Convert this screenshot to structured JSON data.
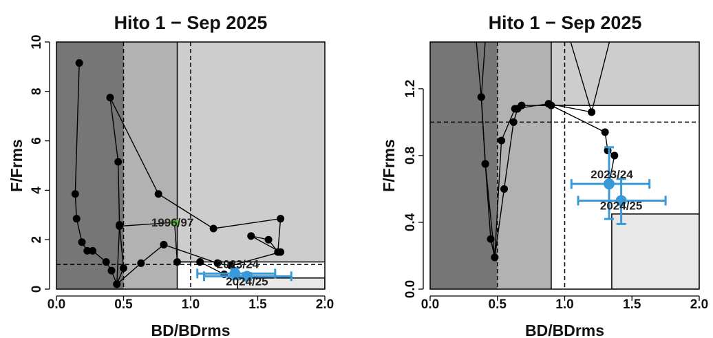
{
  "chart_data": [
    {
      "type": "scatter",
      "title": "Hito 1 − Sep 2025",
      "xlabel": "BD/BDrms",
      "ylabel": "F/Frms",
      "xlim": [
        0,
        2
      ],
      "ylim": [
        0,
        10
      ],
      "xticks": [
        "0.0",
        "0.5",
        "1.0",
        "1.5",
        "2.0"
      ],
      "yticks": [
        "0",
        "2",
        "4",
        "6",
        "8",
        "10"
      ],
      "x_tick_values": [
        0,
        0.5,
        1.0,
        1.5,
        2.0
      ],
      "y_tick_values": [
        0,
        2,
        4,
        6,
        8,
        10
      ],
      "grid": false,
      "ref_lines": {
        "x_dashed": [
          0.5,
          1.0
        ],
        "x_solid": [
          0.9
        ],
        "y_dashed": [
          1.0
        ]
      },
      "zones": {
        "dark_x_max": 0.5,
        "mid_x": [
          0.5,
          0.9
        ],
        "light_top": {
          "x": [
            0.9,
            2.0
          ],
          "y": [
            1.1,
            10
          ]
        },
        "white": {
          "x": [
            0.9,
            2.0
          ],
          "y": [
            0,
            1.1
          ]
        },
        "pale": {
          "x": [
            1.35,
            2.0
          ],
          "y": [
            0,
            0.45
          ]
        }
      },
      "colors": {
        "dark": "#767676",
        "mid": "#b2b2b2",
        "light": "#cdcdcd",
        "pale": "#e8e8e8",
        "series": "#000000",
        "current": "#3a9ad9",
        "highlight": "#5bbf3a"
      },
      "series": [
        {
          "points": [
            [
              0.17,
              9.15
            ],
            [
              0.14,
              3.85
            ],
            [
              0.15,
              2.85
            ],
            [
              0.19,
              1.9
            ],
            [
              0.23,
              1.55
            ],
            [
              0.27,
              1.55
            ],
            [
              0.37,
              1.1
            ],
            [
              0.41,
              0.75
            ],
            [
              0.45,
              0.2
            ],
            [
              0.5,
              0.85
            ],
            [
              0.47,
              2.6
            ],
            [
              0.46,
              5.15
            ],
            [
              0.4,
              7.75
            ],
            [
              0.76,
              3.85
            ],
            [
              1.17,
              2.45
            ],
            [
              1.67,
              2.85
            ],
            [
              1.65,
              1.5
            ],
            [
              1.58,
              2.0
            ],
            [
              1.45,
              2.15
            ],
            [
              1.67,
              1.5
            ],
            [
              1.3,
              0.95
            ],
            [
              1.2,
              1.05
            ],
            [
              0.8,
              1.8
            ],
            [
              0.63,
              1.05
            ],
            [
              0.45,
              0.2
            ],
            [
              0.47,
              2.55
            ],
            [
              0.88,
              2.7
            ],
            [
              0.9,
              1.1
            ],
            [
              1.07,
              1.1
            ],
            [
              1.25,
              0.6
            ]
          ]
        }
      ],
      "highlight_point": {
        "label": "1996/97",
        "x": 0.88,
        "y": 2.7
      },
      "current_points": [
        {
          "label": "2023/24",
          "x": 1.33,
          "y": 0.63,
          "xerr": [
            1.05,
            1.63
          ],
          "yerr": [
            0.4,
            0.85
          ]
        },
        {
          "label": "2024/25",
          "x": 1.42,
          "y": 0.52,
          "xerr": [
            1.1,
            1.75
          ],
          "yerr": [
            0.38,
            0.65
          ]
        }
      ]
    },
    {
      "type": "scatter",
      "title": "Hito 1 − Sep 2025",
      "xlabel": "BD/BDrms",
      "ylabel": "F/Frms",
      "xlim": [
        0,
        2
      ],
      "ylim": [
        0,
        1.48
      ],
      "xticks": [
        "0.0",
        "0.5",
        "1.0",
        "1.5",
        "2.0"
      ],
      "yticks": [
        "0.0",
        "0.4",
        "0.8",
        "1.2"
      ],
      "x_tick_values": [
        0,
        0.5,
        1.0,
        1.5,
        2.0
      ],
      "y_tick_values": [
        0,
        0.4,
        0.8,
        1.2
      ],
      "grid": false,
      "ref_lines": {
        "x_dashed": [
          0.5,
          1.0
        ],
        "x_solid": [
          0.9
        ],
        "y_dashed": [
          1.0
        ]
      },
      "zones": {
        "dark_x_max": 0.5,
        "mid_x": [
          0.5,
          0.9
        ],
        "light_top": {
          "x": [
            0.9,
            2.0
          ],
          "y": [
            1.1,
            1.48
          ]
        },
        "white": {
          "x": [
            0.9,
            2.0
          ],
          "y": [
            0,
            1.1
          ]
        },
        "pale": {
          "x": [
            1.35,
            2.0
          ],
          "y": [
            0,
            0.45
          ]
        }
      },
      "colors": {
        "dark": "#767676",
        "mid": "#b2b2b2",
        "light": "#cdcdcd",
        "pale": "#e8e8e8",
        "series": "#000000",
        "current": "#3a9ad9"
      },
      "series": [
        {
          "points": [
            [
              0.33,
              1.6
            ],
            [
              0.38,
              1.15
            ],
            [
              0.41,
              0.75
            ],
            [
              0.45,
              0.3
            ],
            [
              0.48,
              0.19
            ],
            [
              0.53,
              0.89
            ],
            [
              0.63,
              1.08
            ],
            [
              0.88,
              1.11
            ],
            [
              1.2,
              1.06
            ],
            [
              1.0,
              1.6
            ],
            [
              1.2,
              1.06
            ],
            [
              1.37,
              1.6
            ],
            [
              1.45,
              1.52
            ]
          ]
        },
        {
          "points": [
            [
              0.42,
              1.6
            ],
            [
              0.38,
              1.15
            ],
            [
              0.41,
              0.75
            ],
            [
              0.48,
              0.19
            ],
            [
              0.55,
              0.6
            ],
            [
              0.62,
              1.0
            ],
            [
              0.65,
              1.08
            ],
            [
              0.68,
              1.1
            ],
            [
              0.9,
              1.1
            ],
            [
              1.3,
              0.94
            ],
            [
              1.32,
              0.83
            ],
            [
              1.37,
              0.8
            ],
            [
              1.33,
              0.63
            ]
          ]
        }
      ],
      "current_points": [
        {
          "label": "2023/24",
          "x": 1.33,
          "y": 0.63,
          "xerr": [
            1.05,
            1.63
          ],
          "yerr": [
            0.42,
            0.85
          ]
        },
        {
          "label": "2024/25",
          "x": 1.42,
          "y": 0.53,
          "xerr": [
            1.1,
            1.75
          ],
          "yerr": [
            0.39,
            0.66
          ]
        }
      ]
    }
  ]
}
